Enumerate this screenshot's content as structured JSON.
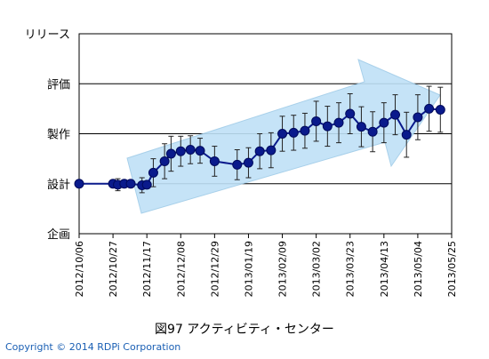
{
  "chart_data": {
    "type": "line",
    "title": "",
    "xlabel": "",
    "ylabel": "",
    "y_categories": [
      "企画",
      "設計",
      "製作",
      "評価",
      "リリース"
    ],
    "y_range": [
      0,
      4
    ],
    "x_tick_labels": [
      "2012/10/06",
      "2012/10/27",
      "2012/11/17",
      "2012/12/08",
      "2012/12/29",
      "2013/01/19",
      "2013/02/09",
      "2013/03/02",
      "2013/03/23",
      "2013/04/13",
      "2013/05/04",
      "2013/05/25"
    ],
    "grid": "horizontal",
    "trend_arrow": true,
    "series": [
      {
        "x": [
          "2012/10/06",
          "2012/10/27",
          "2012/10/30",
          "2012/11/03",
          "2012/11/07",
          "2012/11/14",
          "2012/11/17",
          "2012/11/21",
          "2012/11/28",
          "2012/12/02",
          "2012/12/08",
          "2012/12/14",
          "2012/12/20",
          "2012/12/29",
          "2013/01/12",
          "2013/01/19",
          "2013/01/26",
          "2013/02/02",
          "2013/02/09",
          "2013/02/16",
          "2013/02/23",
          "2013/03/02",
          "2013/03/09",
          "2013/03/16",
          "2013/03/23",
          "2013/03/30",
          "2013/04/06",
          "2013/04/13",
          "2013/04/20",
          "2013/04/27",
          "2013/05/04",
          "2013/05/11",
          "2013/05/18"
        ],
        "values": [
          1.0,
          1.0,
          0.98,
          1.0,
          1.0,
          0.97,
          0.98,
          1.22,
          1.45,
          1.6,
          1.65,
          1.68,
          1.66,
          1.45,
          1.38,
          1.42,
          1.65,
          1.67,
          2.0,
          2.02,
          2.06,
          2.25,
          2.15,
          2.22,
          2.4,
          2.14,
          2.04,
          2.22,
          2.38,
          1.98,
          2.33,
          2.5,
          2.48
        ],
        "error": [
          0.0,
          0.0,
          0.12,
          0.0,
          0.0,
          0.15,
          0.0,
          0.28,
          0.35,
          0.35,
          0.3,
          0.28,
          0.25,
          0.3,
          0.3,
          0.3,
          0.35,
          0.35,
          0.35,
          0.35,
          0.35,
          0.4,
          0.4,
          0.4,
          0.4,
          0.4,
          0.4,
          0.4,
          0.4,
          0.45,
          0.45,
          0.45,
          0.45
        ],
        "color": "#0a1a8c"
      }
    ],
    "colors": {
      "marker": "#0a1a8c",
      "arrow_fill": "#bfe1f7",
      "grid": "#000000"
    }
  },
  "caption": "図97 アクティビティ・センター",
  "copyright": "Copyright © 2014  RDPi Corporation",
  "copyright_color": "#1a5fb4"
}
